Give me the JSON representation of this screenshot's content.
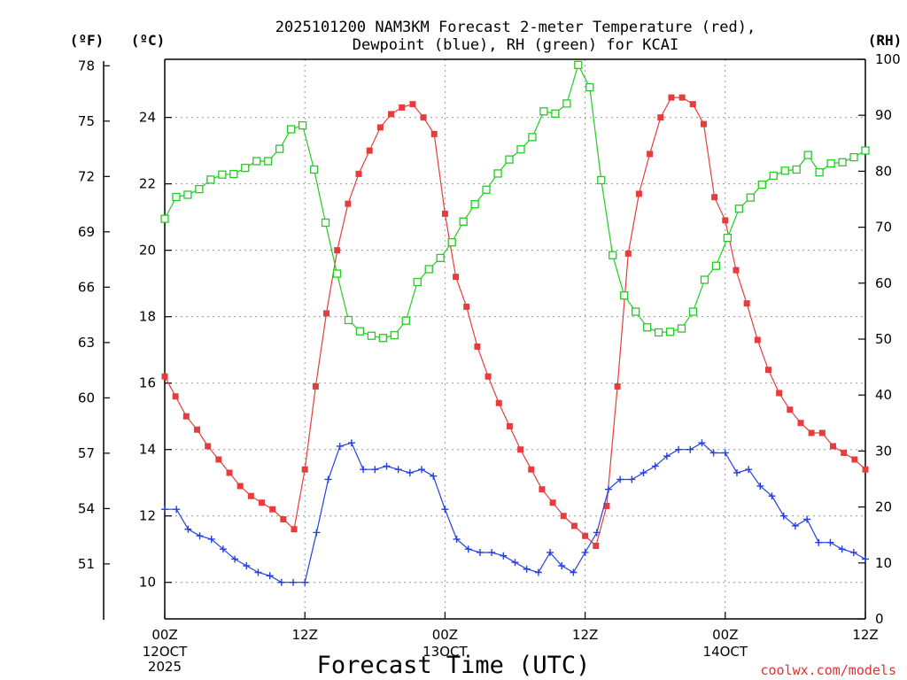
{
  "chart_data": {
    "type": "line",
    "title_line1": "2025101200 NAM3KM Forecast 2-meter Temperature (red),",
    "title_line2": "Dewpoint (blue), RH (green) for KCAI",
    "xlabel": "Forecast Time (UTC)",
    "credit": "coolwx.com/models",
    "unit_fahrenheit": "(ºF)",
    "unit_celsius": "(ºC)",
    "unit_rh": "(RH)",
    "fahrenheit_ticks": [
      "78",
      "75",
      "72",
      "69",
      "66",
      "63",
      "60",
      "57",
      "54",
      "51"
    ],
    "celsius_ticks": [
      "24",
      "22",
      "20",
      "18",
      "16",
      "14",
      "12",
      "10"
    ],
    "rh_ticks": [
      "100",
      "90",
      "80",
      "70",
      "60",
      "50",
      "40",
      "30",
      "20",
      "10",
      "0"
    ],
    "x_ticks": [
      {
        "hour": 0,
        "label": "00Z",
        "sub": [
          "12OCT",
          "2025"
        ]
      },
      {
        "hour": 12,
        "label": "12Z",
        "sub": []
      },
      {
        "hour": 24,
        "label": "00Z",
        "sub": [
          "13OCT"
        ]
      },
      {
        "hour": 36,
        "label": "12Z",
        "sub": []
      },
      {
        "hour": 48,
        "label": "00Z",
        "sub": [
          "14OCT"
        ]
      },
      {
        "hour": 60,
        "label": "12Z",
        "sub": []
      }
    ],
    "x_range_hours": [
      0,
      60
    ],
    "celsius_range": [
      8.9,
      25.75
    ],
    "fahrenheit_range": [
      48.02,
      78.35
    ],
    "rh_range": [
      0,
      100
    ],
    "grid": true,
    "series": [
      {
        "name": "Temperature",
        "color": "#e83c3c",
        "marker": "filled-square",
        "unit": "C",
        "values": [
          16.2,
          15.6,
          15.0,
          14.6,
          14.1,
          13.7,
          13.3,
          12.9,
          12.6,
          12.4,
          12.2,
          11.9,
          11.6,
          13.4,
          15.9,
          18.1,
          20.0,
          21.4,
          22.3,
          23.0,
          23.7,
          24.1,
          24.3,
          24.4,
          24.0,
          23.5,
          21.1,
          19.2,
          18.3,
          17.1,
          16.2,
          15.4,
          14.7,
          14.0,
          13.4,
          12.8,
          12.4,
          12.0,
          11.7,
          11.4,
          11.1,
          12.3,
          15.9,
          19.9,
          21.7,
          22.9,
          24.0,
          24.6,
          24.6,
          24.4,
          23.8,
          21.6,
          20.9,
          19.4,
          18.4,
          17.3,
          16.4,
          15.7,
          15.2,
          14.8,
          14.5,
          14.5,
          14.1,
          13.9,
          13.7,
          13.4
        ]
      },
      {
        "name": "Dewpoint",
        "color": "#2440e0",
        "marker": "plus",
        "unit": "C",
        "values": [
          12.2,
          12.2,
          11.6,
          11.4,
          11.3,
          11.0,
          10.7,
          10.5,
          10.3,
          10.2,
          10.0,
          10.0,
          10.0,
          11.5,
          13.1,
          14.1,
          14.2,
          13.4,
          13.4,
          13.5,
          13.4,
          13.3,
          13.4,
          13.2,
          12.2,
          11.3,
          11.0,
          10.9,
          10.9,
          10.8,
          10.6,
          10.4,
          10.3,
          10.9,
          10.5,
          10.3,
          10.9,
          11.5,
          12.8,
          13.1,
          13.1,
          13.3,
          13.5,
          13.8,
          14.0,
          14.0,
          14.2,
          13.9,
          13.9,
          13.3,
          13.4,
          12.9,
          12.6,
          12.0,
          11.7,
          11.9,
          11.2,
          11.2,
          11.0,
          10.9,
          10.7
        ]
      },
      {
        "name": "RH",
        "color": "#22cc22",
        "marker": "open-square",
        "unit": "%",
        "values": [
          71.5,
          75.4,
          75.8,
          76.8,
          78.5,
          79.4,
          79.5,
          80.6,
          81.8,
          81.8,
          84.0,
          87.5,
          88.2,
          80.3,
          70.8,
          61.7,
          53.4,
          51.4,
          50.6,
          50.2,
          50.7,
          53.3,
          60.2,
          62.5,
          64.5,
          67.3,
          71.0,
          74.1,
          76.7,
          79.6,
          82.1,
          83.9,
          86.1,
          90.7,
          90.3,
          92.1,
          99.0,
          95.0,
          78.4,
          65.0,
          57.8,
          54.9,
          52.1,
          51.2,
          51.3,
          51.9,
          54.9,
          60.6,
          63.1,
          68.1,
          73.3,
          75.3,
          77.6,
          79.2,
          80.1,
          80.3,
          82.9,
          79.8,
          81.4,
          81.6,
          82.5,
          83.7
        ]
      }
    ]
  }
}
